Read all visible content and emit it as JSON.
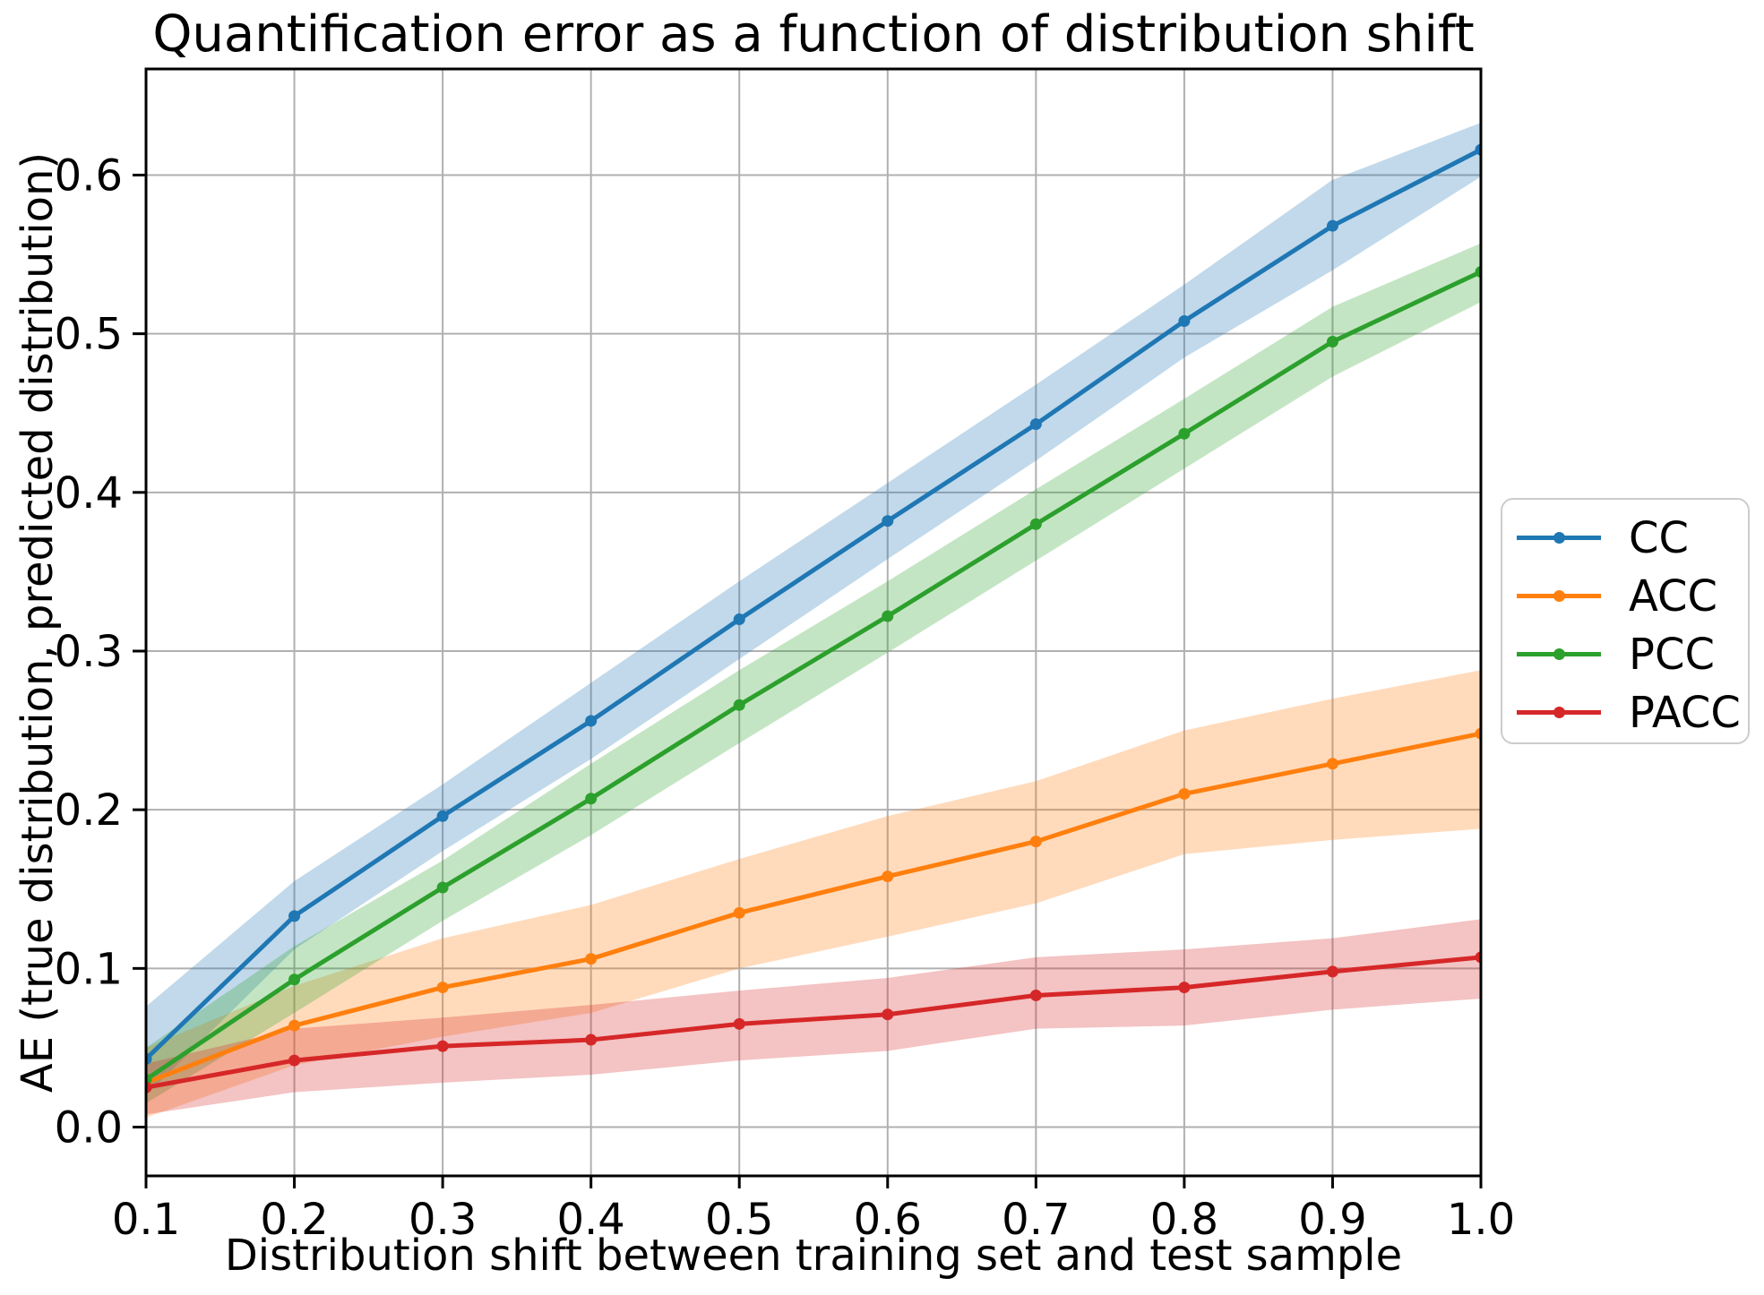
{
  "chart_data": {
    "type": "line",
    "title": "Quantification error as a function of distribution shift",
    "xlabel": "Distribution shift between training set and test sample",
    "ylabel": "AE (true distribution, predicted distribution)",
    "x": [
      0.1,
      0.2,
      0.3,
      0.4,
      0.5,
      0.6,
      0.7,
      0.8,
      0.9,
      1.0
    ],
    "x_tick_labels": [
      "0.1",
      "0.2",
      "0.3",
      "0.4",
      "0.5",
      "0.6",
      "0.7",
      "0.8",
      "0.9",
      "1.0"
    ],
    "y_ticks": [
      0.0,
      0.1,
      0.2,
      0.3,
      0.4,
      0.5,
      0.6
    ],
    "y_tick_labels": [
      "0.0",
      "0.1",
      "0.2",
      "0.3",
      "0.4",
      "0.5",
      "0.6"
    ],
    "xlim": [
      0.1,
      1.0
    ],
    "ylim": [
      -0.031,
      0.667
    ],
    "grid": true,
    "grid_color": "#b0b0b0",
    "spine_color": "#000000",
    "band_opacity": 0.28,
    "legend_position": "outside-right",
    "series": [
      {
        "name": "CC",
        "color": "#1f77b4",
        "values": [
          0.043,
          0.133,
          0.196,
          0.256,
          0.32,
          0.382,
          0.443,
          0.508,
          0.568,
          0.616
        ],
        "band_lower": [
          0.02,
          0.112,
          0.174,
          0.232,
          0.295,
          0.358,
          0.42,
          0.485,
          0.54,
          0.599
        ],
        "band_upper": [
          0.076,
          0.155,
          0.216,
          0.28,
          0.344,
          0.406,
          0.468,
          0.531,
          0.597,
          0.633
        ]
      },
      {
        "name": "ACC",
        "color": "#ff7f0e",
        "values": [
          0.028,
          0.064,
          0.088,
          0.106,
          0.135,
          0.158,
          0.18,
          0.21,
          0.229,
          0.248
        ],
        "band_lower": [
          0.006,
          0.039,
          0.057,
          0.072,
          0.1,
          0.12,
          0.141,
          0.172,
          0.181,
          0.188
        ],
        "band_upper": [
          0.05,
          0.089,
          0.119,
          0.14,
          0.169,
          0.196,
          0.218,
          0.25,
          0.27,
          0.288
        ]
      },
      {
        "name": "PCC",
        "color": "#2ca02c",
        "values": [
          0.03,
          0.093,
          0.151,
          0.207,
          0.266,
          0.322,
          0.38,
          0.437,
          0.495,
          0.539
        ],
        "band_lower": [
          0.015,
          0.072,
          0.13,
          0.184,
          0.242,
          0.299,
          0.357,
          0.415,
          0.473,
          0.52
        ],
        "band_upper": [
          0.05,
          0.114,
          0.168,
          0.229,
          0.288,
          0.344,
          0.402,
          0.459,
          0.517,
          0.557
        ]
      },
      {
        "name": "PACC",
        "color": "#d62728",
        "values": [
          0.025,
          0.042,
          0.051,
          0.055,
          0.065,
          0.071,
          0.083,
          0.088,
          0.098,
          0.107
        ],
        "band_lower": [
          0.008,
          0.022,
          0.028,
          0.033,
          0.042,
          0.048,
          0.062,
          0.064,
          0.074,
          0.081
        ],
        "band_upper": [
          0.04,
          0.062,
          0.069,
          0.077,
          0.086,
          0.094,
          0.107,
          0.112,
          0.119,
          0.131
        ]
      }
    ]
  }
}
